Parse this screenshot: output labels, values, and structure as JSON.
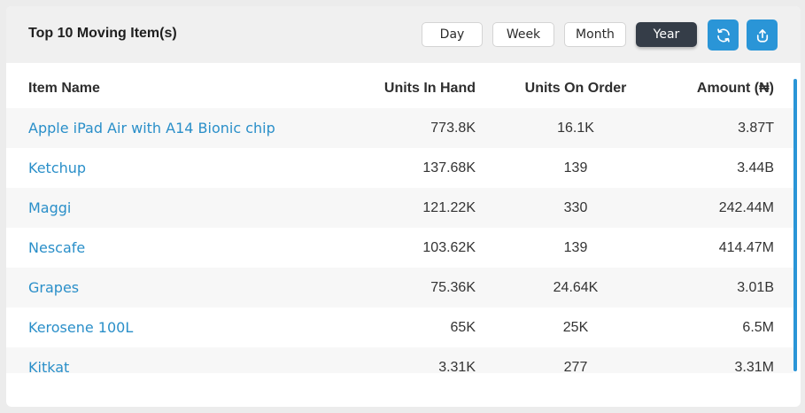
{
  "widget": {
    "title": "Top 10 Moving Item(s)",
    "filters": [
      "Day",
      "Week",
      "Month",
      "Year"
    ],
    "active_filter": "Year",
    "refresh_icon": "refresh-icon",
    "export_icon": "upload-icon",
    "accent": "#2a95d7"
  },
  "table": {
    "columns": {
      "name": "Item Name",
      "hand": "Units In Hand",
      "order": "Units On Order",
      "amount": "Amount (₦)"
    },
    "rows": [
      {
        "name": "Apple iPad Air with A14 Bionic chip",
        "hand": "773.8K",
        "order": "16.1K",
        "amount": "3.87T"
      },
      {
        "name": "Ketchup",
        "hand": "137.68K",
        "order": "139",
        "amount": "3.44B"
      },
      {
        "name": "Maggi",
        "hand": "121.22K",
        "order": "330",
        "amount": "242.44M"
      },
      {
        "name": "Nescafe",
        "hand": "103.62K",
        "order": "139",
        "amount": "414.47M"
      },
      {
        "name": "Grapes",
        "hand": "75.36K",
        "order": "24.64K",
        "amount": "3.01B"
      },
      {
        "name": "Kerosene 100L",
        "hand": "65K",
        "order": "25K",
        "amount": "6.5M"
      },
      {
        "name": "Kitkat",
        "hand": "3.31K",
        "order": "277",
        "amount": "3.31M"
      }
    ]
  }
}
